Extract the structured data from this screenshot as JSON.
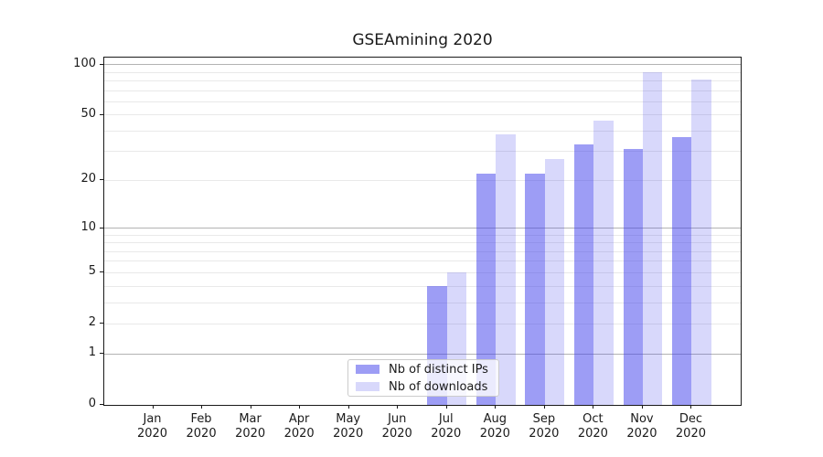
{
  "chart_data": {
    "type": "bar",
    "title": "GSEAmining 2020",
    "categories": [
      {
        "month": "Jan",
        "year": "2020"
      },
      {
        "month": "Feb",
        "year": "2020"
      },
      {
        "month": "Mar",
        "year": "2020"
      },
      {
        "month": "Apr",
        "year": "2020"
      },
      {
        "month": "May",
        "year": "2020"
      },
      {
        "month": "Jun",
        "year": "2020"
      },
      {
        "month": "Jul",
        "year": "2020"
      },
      {
        "month": "Aug",
        "year": "2020"
      },
      {
        "month": "Sep",
        "year": "2020"
      },
      {
        "month": "Oct",
        "year": "2020"
      },
      {
        "month": "Nov",
        "year": "2020"
      },
      {
        "month": "Dec",
        "year": "2020"
      }
    ],
    "series": [
      {
        "name": "Nb of distinct IPs",
        "color_hex": "#9d9df5",
        "color_rgba": "rgba(60,60,235,0.5)",
        "values": [
          0,
          0,
          0,
          0,
          0,
          0,
          4,
          22,
          22,
          33,
          31,
          37
        ]
      },
      {
        "name": "Nb of downloads",
        "color_hex": "#d9d9fb",
        "color_rgba": "rgba(60,60,235,0.2)",
        "values": [
          0,
          0,
          0,
          0,
          0,
          0,
          5,
          38,
          27,
          46,
          90,
          81
        ]
      }
    ],
    "yscale": "log1p",
    "y_ticks": [
      0,
      1,
      2,
      5,
      10,
      20,
      50,
      100
    ],
    "ylim": [
      0,
      110
    ],
    "xlabel": "",
    "ylabel": "",
    "grid": "horizontal-only",
    "legend_position": "lower-center",
    "colors": {
      "grid_major": "#b3b3b3",
      "grid_minor": "#e9e9e9",
      "spine": "#1a1a1a",
      "text": "#1a1a1a",
      "legend_border": "#cccccc",
      "legend_bg": "rgba(255,255,255,0.8)"
    }
  }
}
